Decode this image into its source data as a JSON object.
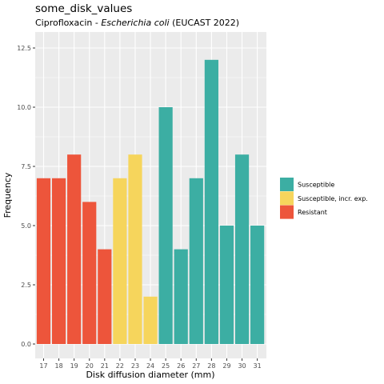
{
  "chart_data": {
    "type": "bar",
    "title": "some_disk_values",
    "subtitle": {
      "prefix": "Ciprofloxacin - ",
      "organism": "Escherichia coli",
      "suffix": " (EUCAST 2022)"
    },
    "xlabel": "Disk diffusion diameter (mm)",
    "ylabel": "Frequency",
    "ylim": [
      0,
      12.5
    ],
    "yticks": [
      "0.0",
      "2.5",
      "5.0",
      "7.5",
      "10.0",
      "12.5"
    ],
    "grid": true,
    "legend_position": "right",
    "categories": [
      "17",
      "18",
      "19",
      "20",
      "21",
      "22",
      "23",
      "24",
      "25",
      "26",
      "27",
      "28",
      "29",
      "30",
      "31"
    ],
    "values": [
      7,
      7,
      8,
      6,
      4,
      7,
      8,
      2,
      10,
      4,
      7,
      12,
      5,
      8,
      5
    ],
    "interpretation": [
      "R",
      "R",
      "R",
      "R",
      "R",
      "I",
      "I",
      "I",
      "S",
      "S",
      "S",
      "S",
      "S",
      "S",
      "S"
    ],
    "legend": [
      {
        "key": "S",
        "label": "Susceptible",
        "color": "#3caea3"
      },
      {
        "key": "I",
        "label": "Susceptible, incr. exp.",
        "color": "#f6d55c"
      },
      {
        "key": "R",
        "label": "Resistant",
        "color": "#ed553b"
      }
    ]
  }
}
